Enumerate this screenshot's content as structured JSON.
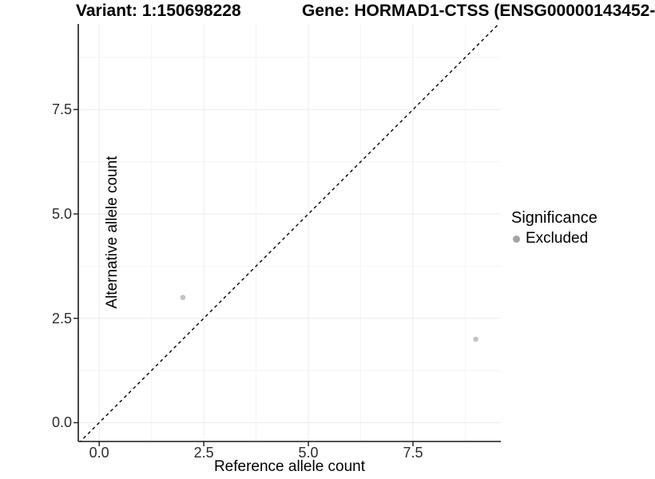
{
  "header": {
    "title_left": "Variant: 1:150698228",
    "title_right": "Gene: HORMAD1-CTSS (ENSG00000143452-"
  },
  "chart_data": {
    "type": "scatter",
    "title": "Variant: 1:150698228   Gene: HORMAD1-CTSS (ENSG00000143452-",
    "xlabel": "Reference allele count",
    "ylabel": "Alternative allele count",
    "xlim": [
      -0.5,
      9.6
    ],
    "ylim": [
      -0.45,
      9.55
    ],
    "xticks": {
      "values": [
        0,
        2.5,
        5,
        7.5
      ],
      "labels": [
        "0.0",
        "2.5",
        "5.0",
        "7.5"
      ]
    },
    "yticks": {
      "values": [
        0,
        2.5,
        5,
        7.5
      ],
      "labels": [
        "0.0",
        "2.5",
        "5.0",
        "7.5"
      ]
    },
    "minor_ticks": [
      1.25,
      3.75,
      6.25,
      8.75
    ],
    "grid": "major+minor",
    "series": [
      {
        "name": "Excluded",
        "points": [
          {
            "x": 2,
            "y": 3
          },
          {
            "x": 9,
            "y": 2
          }
        ]
      }
    ],
    "reference_line": {
      "type": "identity",
      "slope": 1,
      "intercept": 0,
      "style": "dashed"
    },
    "legend": {
      "position": "right",
      "title": "Significance",
      "items": [
        {
          "label": "Excluded",
          "color": "#a3a3a3"
        }
      ]
    }
  },
  "colors": {
    "background": "#ffffff",
    "axis_line": "#1a1a1a",
    "tick_mark": "#1a1a1a",
    "grid_major": "#ebebeb",
    "grid_minor": "#f4f4f4",
    "point_fill": "#c4c4c4",
    "legend_point": "#a3a3a3",
    "reference_line": "#000000"
  }
}
